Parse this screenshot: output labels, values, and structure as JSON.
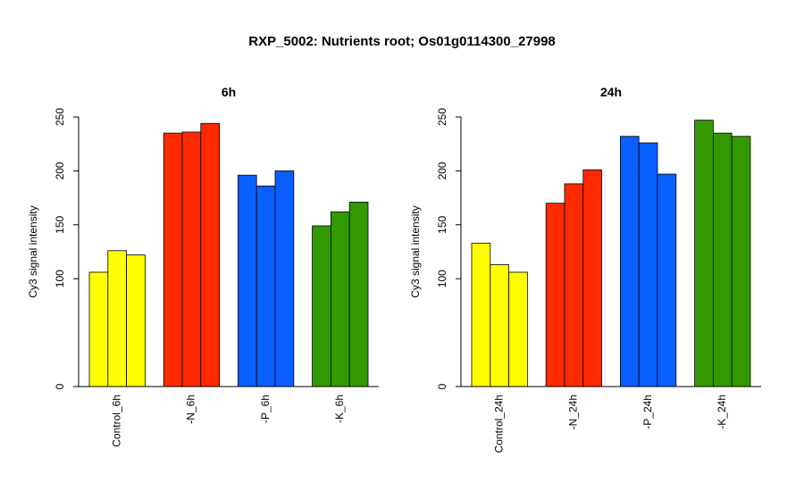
{
  "title": "RXP_5002: Nutrients root; Os01g0114300_27998",
  "chart_data": [
    {
      "type": "bar",
      "title": "6h",
      "ylabel": "Cy3 signal intensity",
      "ylim": [
        0,
        250
      ],
      "yticks": [
        0,
        100,
        150,
        200,
        250
      ],
      "groups": [
        {
          "label": "Control_6h",
          "color": "#ffff00",
          "values": [
            106,
            126,
            122
          ]
        },
        {
          "label": "-N_6h",
          "color": "#ff2a00",
          "values": [
            235,
            236,
            244
          ]
        },
        {
          "label": "-P_6h",
          "color": "#0a5fff",
          "values": [
            196,
            186,
            200
          ]
        },
        {
          "label": "-K_6h",
          "color": "#339900",
          "values": [
            149,
            162,
            171
          ]
        }
      ]
    },
    {
      "type": "bar",
      "title": "24h",
      "ylabel": "Cy3 signal intensity",
      "ylim": [
        0,
        250
      ],
      "yticks": [
        0,
        100,
        150,
        200,
        250
      ],
      "groups": [
        {
          "label": "Control_24h",
          "color": "#ffff00",
          "values": [
            133,
            113,
            106
          ]
        },
        {
          "label": "-N_24h",
          "color": "#ff2a00",
          "values": [
            170,
            188,
            201
          ]
        },
        {
          "label": "-P_24h",
          "color": "#0a5fff",
          "values": [
            232,
            226,
            197
          ]
        },
        {
          "label": "-K_24h",
          "color": "#339900",
          "values": [
            247,
            235,
            232
          ]
        }
      ]
    }
  ]
}
